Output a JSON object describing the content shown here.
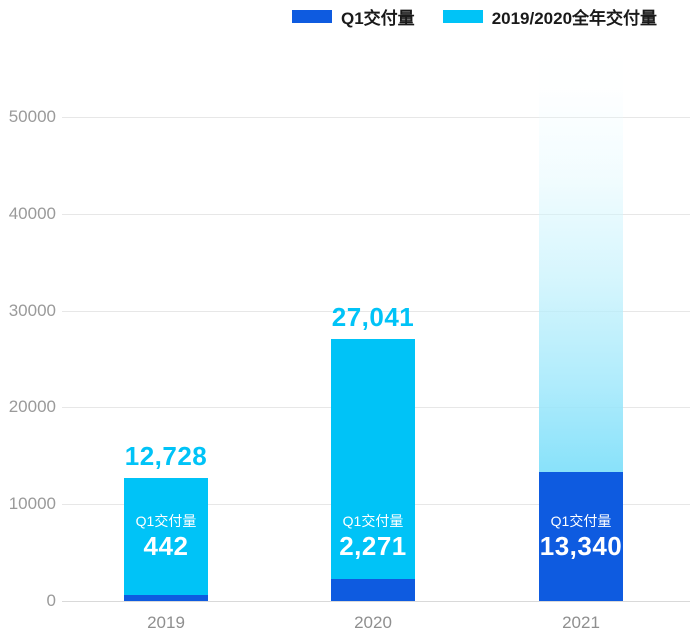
{
  "chart": {
    "background": "#ffffff",
    "grid_color": "#e7e7e7",
    "axis_color": "#d9d9d9",
    "tick_text_color": "#9a9a9a",
    "xlabel_text_color": "#8f8f8f"
  },
  "legend": {
    "items": [
      {
        "label": "Q1交付量",
        "color": "#0e5be0"
      },
      {
        "label": "2019/2020全年交付量",
        "color": "#00c3f7"
      }
    ]
  },
  "chart_data": {
    "type": "bar",
    "stacked": true,
    "title": "",
    "xlabel": "",
    "ylabel": "",
    "categories": [
      "2019",
      "2020",
      "2021"
    ],
    "series": [
      {
        "name": "Q1交付量",
        "color": "#0e5be0",
        "values": [
          442,
          2271,
          13340
        ]
      },
      {
        "name": "2019/2020全年交付量",
        "color": "#00c3f7",
        "values": [
          12728,
          27041,
          null
        ]
      }
    ],
    "total_labels": [
      "12,728",
      "27,041",
      ""
    ],
    "total_label_color": "#00c3f7",
    "inner_labels": [
      {
        "title": "Q1交付量",
        "value": "442"
      },
      {
        "title": "Q1交付量",
        "value": "2,271"
      },
      {
        "title": "Q1交付量",
        "value": "13,340"
      }
    ],
    "inner_label_color": "#ffffff",
    "y_ticks": [
      0,
      10000,
      20000,
      30000,
      40000,
      50000
    ],
    "ylim": [
      0,
      58000
    ],
    "grid": true,
    "legend_position": "top-right",
    "projection": {
      "category": "2021",
      "fade_top_value": 57000,
      "style": "gradient-fade-to-white"
    }
  }
}
